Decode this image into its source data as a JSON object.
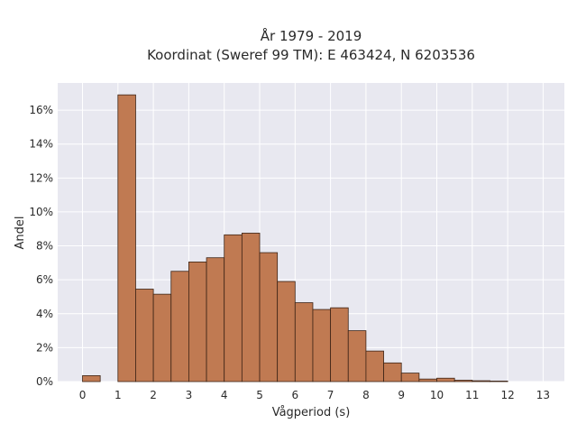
{
  "chart_data": {
    "type": "bar",
    "title_line1": "År 1979 - 2019",
    "title_line2": "Koordinat (Sweref 99 TM): E 463424, N 6203536",
    "xlabel": "Vågperiod (s)",
    "ylabel": "Andel",
    "xlim": [
      -0.7,
      13.6
    ],
    "ylim": [
      0,
      17.6
    ],
    "x_ticks": [
      0,
      1,
      2,
      3,
      4,
      5,
      6,
      7,
      8,
      9,
      10,
      11,
      12,
      13
    ],
    "y_ticks": [
      0,
      2,
      4,
      6,
      8,
      10,
      12,
      14,
      16
    ],
    "y_tick_labels": [
      "0%",
      "2%",
      "4%",
      "6%",
      "8%",
      "10%",
      "12%",
      "14%",
      "16%"
    ],
    "bin_width": 0.5,
    "bins": [
      {
        "x0": 0.0,
        "value": 0.35
      },
      {
        "x0": 0.5,
        "value": 0.0
      },
      {
        "x0": 1.0,
        "value": 16.9
      },
      {
        "x0": 1.5,
        "value": 5.45
      },
      {
        "x0": 2.0,
        "value": 5.15
      },
      {
        "x0": 2.5,
        "value": 6.5
      },
      {
        "x0": 3.0,
        "value": 7.05
      },
      {
        "x0": 3.5,
        "value": 7.3
      },
      {
        "x0": 4.0,
        "value": 8.65
      },
      {
        "x0": 4.5,
        "value": 8.75
      },
      {
        "x0": 5.0,
        "value": 7.6
      },
      {
        "x0": 5.5,
        "value": 5.9
      },
      {
        "x0": 6.0,
        "value": 4.65
      },
      {
        "x0": 6.5,
        "value": 4.25
      },
      {
        "x0": 7.0,
        "value": 4.35
      },
      {
        "x0": 7.5,
        "value": 3.0
      },
      {
        "x0": 8.0,
        "value": 1.8
      },
      {
        "x0": 8.5,
        "value": 1.1
      },
      {
        "x0": 9.0,
        "value": 0.5
      },
      {
        "x0": 9.5,
        "value": 0.15
      },
      {
        "x0": 10.0,
        "value": 0.2
      },
      {
        "x0": 10.5,
        "value": 0.08
      },
      {
        "x0": 11.0,
        "value": 0.05
      },
      {
        "x0": 11.5,
        "value": 0.03
      },
      {
        "x0": 12.0,
        "value": 0.0
      }
    ],
    "grid": true,
    "colors": {
      "background": "#e8e8f0",
      "grid": "#ffffff",
      "bar_fill": "#c07a52",
      "bar_edge": "#3d2416"
    }
  }
}
